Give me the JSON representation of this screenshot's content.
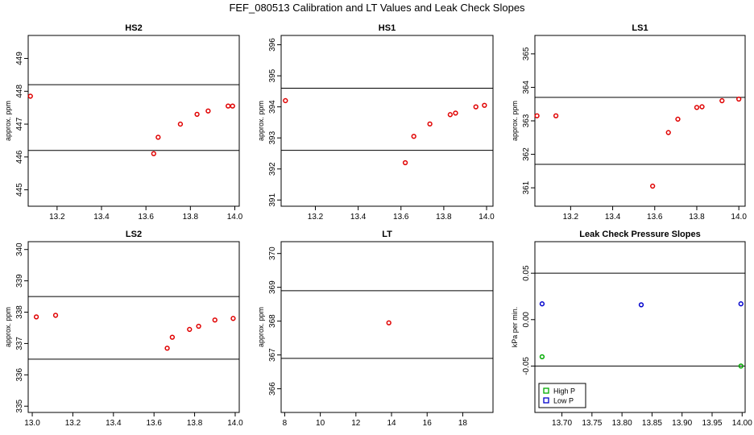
{
  "title": "FEF_080513  Calibration and LT Values and Leak Check Slopes",
  "chart_data": [
    {
      "type": "scatter",
      "title": "HS2",
      "ylabel": "approx. ppm",
      "xlim": [
        13.07,
        14.02
      ],
      "ylim": [
        444.5,
        449.7
      ],
      "xticks": [
        "13.2",
        "13.4",
        "13.6",
        "13.8",
        "14.0"
      ],
      "yticks": [
        "445",
        "446",
        "447",
        "448",
        "449"
      ],
      "hlines": [
        446.2,
        448.2
      ],
      "series": [
        {
          "color": "#e00000",
          "x": [
            13.08,
            13.635,
            13.655,
            13.755,
            13.83,
            13.88,
            13.97,
            13.99
          ],
          "y": [
            447.85,
            446.1,
            446.6,
            447.0,
            447.3,
            447.4,
            447.55,
            447.55
          ]
        }
      ]
    },
    {
      "type": "scatter",
      "title": "HS1",
      "ylabel": "approx. ppm",
      "xlim": [
        13.04,
        14.03
      ],
      "ylim": [
        390.8,
        396.3
      ],
      "xticks": [
        "13.2",
        "13.4",
        "13.6",
        "13.8",
        "14.0"
      ],
      "yticks": [
        "391",
        "392",
        "393",
        "394",
        "395",
        "396"
      ],
      "hlines": [
        392.6,
        394.6
      ],
      "series": [
        {
          "color": "#e00000",
          "x": [
            13.06,
            13.62,
            13.66,
            13.735,
            13.83,
            13.855,
            13.95,
            13.99
          ],
          "y": [
            394.2,
            392.2,
            393.05,
            393.45,
            393.75,
            393.8,
            394.0,
            394.05
          ]
        }
      ]
    },
    {
      "type": "scatter",
      "title": "LS1",
      "ylabel": "approx. ppm",
      "xlim": [
        13.03,
        14.03
      ],
      "ylim": [
        360.45,
        365.55
      ],
      "xticks": [
        "13.2",
        "13.4",
        "13.6",
        "13.8",
        "14.0"
      ],
      "yticks": [
        "361",
        "362",
        "363",
        "364",
        "365"
      ],
      "hlines": [
        361.7,
        363.7
      ],
      "series": [
        {
          "color": "#e00000",
          "x": [
            13.04,
            13.13,
            13.59,
            13.665,
            13.71,
            13.8,
            13.825,
            13.92,
            14.0
          ],
          "y": [
            363.15,
            363.15,
            361.05,
            362.65,
            363.05,
            363.4,
            363.42,
            363.6,
            363.65
          ]
        }
      ]
    },
    {
      "type": "scatter",
      "title": "LS2",
      "ylabel": "approx. ppm",
      "xlim": [
        12.98,
        14.02
      ],
      "ylim": [
        334.8,
        340.25
      ],
      "xticks": [
        "13.0",
        "13.2",
        "13.4",
        "13.6",
        "13.8",
        "14.0"
      ],
      "yticks": [
        "335",
        "336",
        "337",
        "338",
        "339",
        "340"
      ],
      "hlines": [
        336.5,
        338.5
      ],
      "series": [
        {
          "color": "#e00000",
          "x": [
            13.02,
            13.115,
            13.665,
            13.69,
            13.775,
            13.82,
            13.9,
            13.99
          ],
          "y": [
            337.85,
            337.9,
            336.85,
            337.2,
            337.45,
            337.55,
            337.75,
            337.8
          ]
        }
      ]
    },
    {
      "type": "scatter",
      "title": "LT",
      "ylabel": "approx. ppm",
      "xlim": [
        7.8,
        19.7
      ],
      "ylim": [
        365.3,
        370.35
      ],
      "xticks": [
        "8",
        "10",
        "12",
        "14",
        "16",
        "18"
      ],
      "yticks": [
        "366",
        "367",
        "368",
        "369",
        "370"
      ],
      "hlines": [
        366.9,
        368.9
      ],
      "series": [
        {
          "color": "#e00000",
          "x": [
            13.85
          ],
          "y": [
            367.95
          ]
        }
      ]
    },
    {
      "type": "scatter",
      "title": "Leak Check Pressure Slopes",
      "ylabel": "kPa per min.",
      "xlim": [
        13.655,
        14.005
      ],
      "ylim": [
        -0.1,
        0.084
      ],
      "xticks": [
        "13.70",
        "13.75",
        "13.80",
        "13.85",
        "13.90",
        "13.95",
        "14.00"
      ],
      "yticks": [
        "-0.05",
        "0.00",
        "0.05"
      ],
      "hlines": [
        -0.05,
        0.05
      ],
      "legend": "bottom-left",
      "series": [
        {
          "name": "High P",
          "color": "#00aa00",
          "x": [
            13.667,
            13.998
          ],
          "y": [
            -0.04,
            -0.05
          ]
        },
        {
          "name": "Low P",
          "color": "#0000cc",
          "x": [
            13.667,
            13.832,
            13.998
          ],
          "y": [
            0.017,
            0.016,
            0.017
          ]
        }
      ]
    }
  ]
}
